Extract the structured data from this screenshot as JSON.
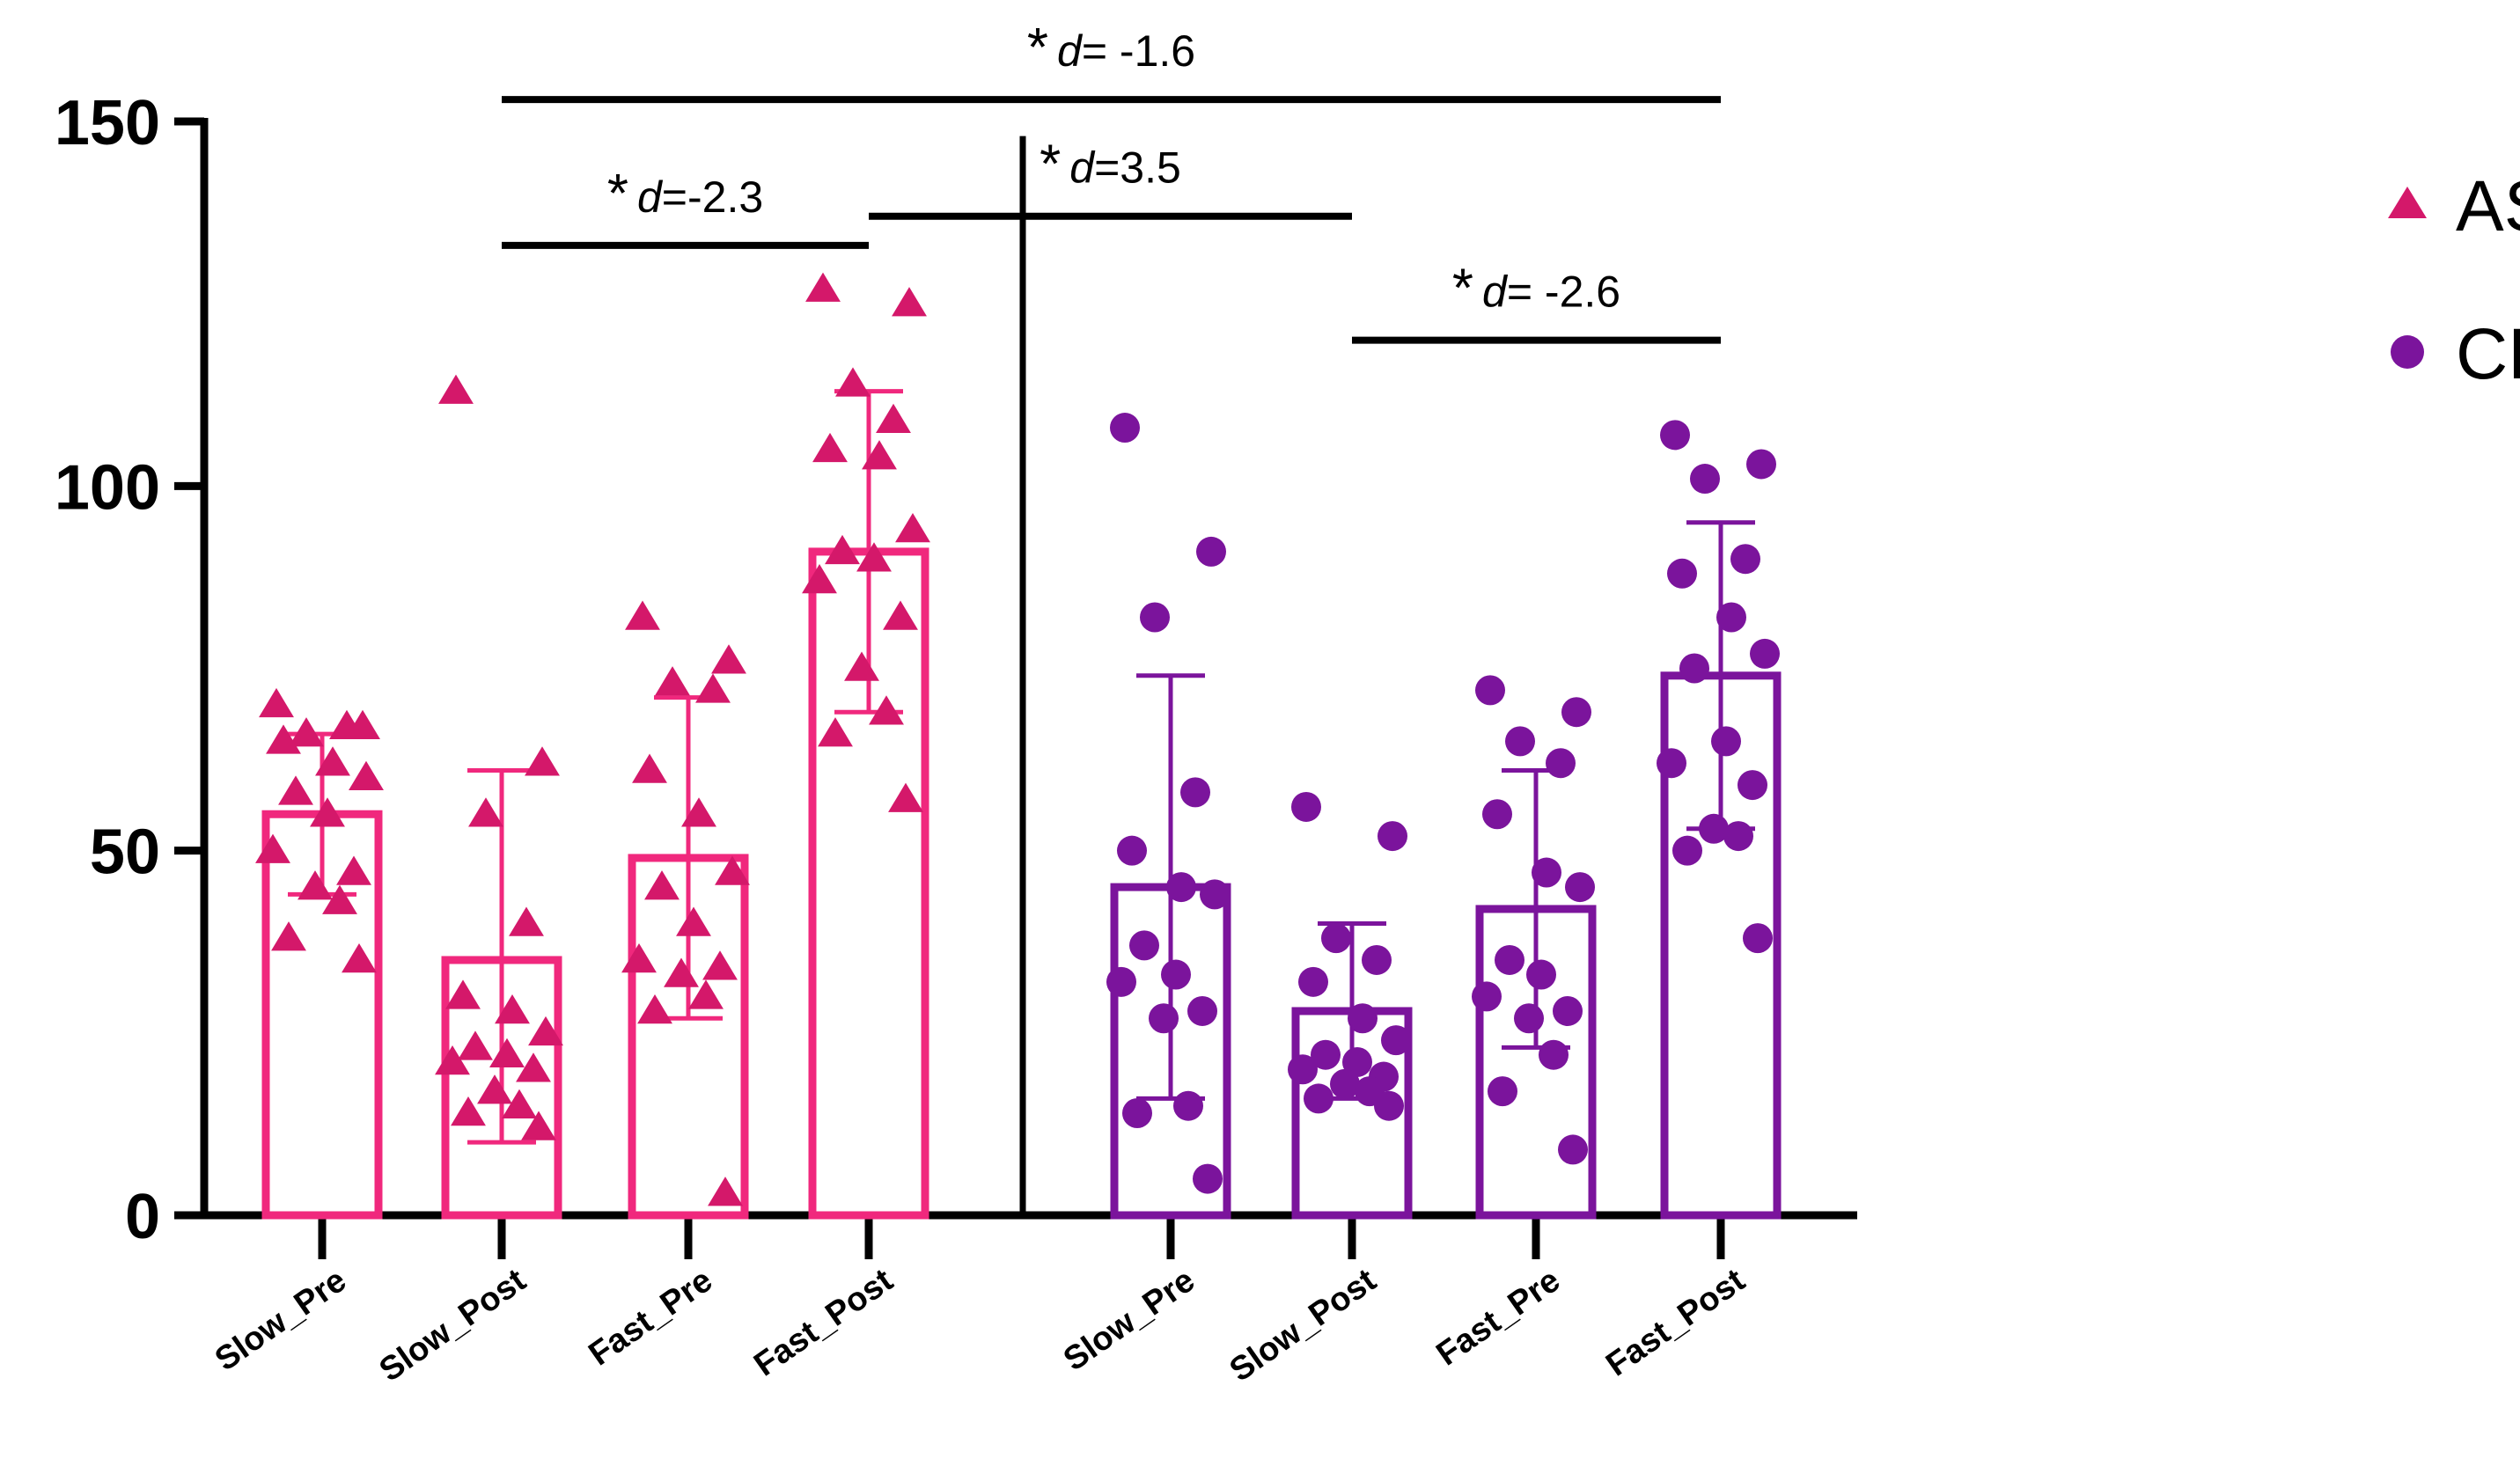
{
  "chart_data": {
    "type": "bar",
    "ylim": [
      0,
      150
    ],
    "yticks": [
      "0",
      "50",
      "100",
      "150"
    ],
    "categories": [
      "Slow_Pre",
      "Slow_Post",
      "Fast_Pre",
      "Fast_Post",
      "Slow_Pre",
      "Slow_Post",
      "Fast_Pre",
      "Fast_Post"
    ],
    "legend_position": "right",
    "series": [
      {
        "name": "AS",
        "color": "#f0287d",
        "marker_color": "#d4186a",
        "marker": "triangle",
        "bars": [
          {
            "mean": 55,
            "sd_low": 44,
            "sd_high": 66,
            "points": [
              70,
              67,
              66,
              67,
              65,
              62,
              60,
              58,
              55,
              50,
              47,
              45,
              43,
              38,
              35
            ]
          },
          {
            "mean": 35,
            "sd_low": 10,
            "sd_high": 61,
            "points": [
              113,
              62,
              55,
              40,
              30,
              28,
              25,
              23,
              22,
              21,
              20,
              17,
              15,
              14,
              12
            ]
          },
          {
            "mean": 49,
            "sd_low": 27,
            "sd_high": 71,
            "points": [
              82,
              76,
              73,
              72,
              61,
              55,
              47,
              45,
              40,
              35,
              34,
              33,
              30,
              28,
              3
            ]
          },
          {
            "mean": 91,
            "sd_low": 69,
            "sd_high": 113,
            "points": [
              127,
              125,
              114,
              109,
              105,
              104,
              94,
              91,
              90,
              87,
              82,
              75,
              69,
              66,
              57
            ]
          }
        ]
      },
      {
        "name": "CLBP",
        "color": "#7b149c",
        "marker_color": "#7b149c",
        "marker": "circle",
        "bars": [
          {
            "mean": 45,
            "sd_low": 16,
            "sd_high": 74,
            "points": [
              108,
              91,
              82,
              58,
              50,
              45,
              44,
              37,
              33,
              32,
              28,
              27,
              15,
              14,
              5
            ]
          },
          {
            "mean": 28,
            "sd_low": 16,
            "sd_high": 40,
            "points": [
              56,
              52,
              38,
              35,
              32,
              27,
              24,
              22,
              21,
              20,
              19,
              18,
              17,
              16,
              15
            ]
          },
          {
            "mean": 42,
            "sd_low": 23,
            "sd_high": 61,
            "points": [
              72,
              69,
              65,
              62,
              55,
              47,
              45,
              35,
              33,
              30,
              28,
              27,
              22,
              17,
              9
            ]
          },
          {
            "mean": 74,
            "sd_low": 53,
            "sd_high": 95,
            "points": [
              107,
              103,
              101,
              90,
              88,
              82,
              77,
              75,
              65,
              62,
              59,
              53,
              52,
              50,
              38
            ]
          }
        ]
      }
    ],
    "annotations": [
      {
        "from": 1,
        "to": 7,
        "y": 153,
        "star": "*",
        "italic": "d",
        "value": "= -1.6"
      },
      {
        "from": 1,
        "to": 3,
        "y": 133,
        "star": "*",
        "italic": "d",
        "value": "=-2.3"
      },
      {
        "from": 3,
        "to": 5,
        "y": 137,
        "star": "*",
        "italic": "d",
        "value": "=3.5"
      },
      {
        "from": 5,
        "to": 7,
        "y": 120,
        "star": "*",
        "italic": "d",
        "value": "= -2.6"
      }
    ]
  }
}
